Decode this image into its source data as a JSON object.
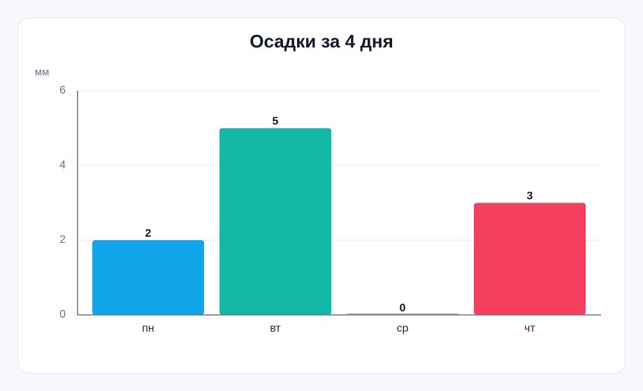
{
  "chart_data": {
    "type": "bar",
    "title": "Осадки за 4 дня",
    "y_label": "мм",
    "categories": [
      "пн",
      "вт",
      "ср",
      "чт"
    ],
    "values": [
      2,
      5,
      0,
      3
    ],
    "colors": [
      "#10a5e9",
      "#14b8a6",
      "#d9a23b",
      "#f43f5e"
    ],
    "ylim": [
      0,
      6
    ],
    "yticks": [
      0,
      2,
      4,
      6
    ],
    "grid": true,
    "value_labels_shown": true
  }
}
